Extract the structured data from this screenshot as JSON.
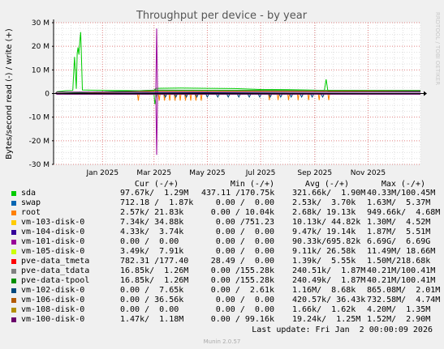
{
  "chart_data": {
    "type": "line",
    "title": "Throughput per device - by year",
    "ylabel": "Bytes/second read (-) / write (+)",
    "side_label": "RRDTOOL / TOBI OETIKER",
    "ylim": [
      -30,
      30
    ],
    "y_unit": "M",
    "yticks": [
      30,
      20,
      10,
      0,
      -10,
      -20,
      -30
    ],
    "ytick_labels": [
      "30 M",
      "20 M",
      "10 M",
      "0",
      "-10 M",
      "-20 M",
      "-30 M"
    ],
    "xlim": [
      "2024-11-06",
      "2025-12-31"
    ],
    "xticks": [
      {
        "date": "2025-01-01",
        "label": "Jan 2025"
      },
      {
        "date": "2025-03-01",
        "label": "Mar 2025"
      },
      {
        "date": "2025-05-01",
        "label": "May 2025"
      },
      {
        "date": "2025-07-01",
        "label": "Jul 2025"
      },
      {
        "date": "2025-09-01",
        "label": "Sep 2025"
      },
      {
        "date": "2025-11-01",
        "label": "Nov 2025"
      }
    ],
    "grid": true,
    "legend_placement": "bottom",
    "series": [
      {
        "name": "sda",
        "color": "#00cc00",
        "write": [
          [
            "2024-11-08",
            0
          ],
          [
            "2024-11-10",
            0.8
          ],
          [
            "2024-11-20",
            1.2
          ],
          [
            "2024-11-28",
            1.3
          ],
          [
            "2024-11-30",
            15.5
          ],
          [
            "2024-12-02",
            2.0
          ],
          [
            "2024-12-03",
            17.0
          ],
          [
            "2024-12-04",
            19.5
          ],
          [
            "2024-12-05",
            16.5
          ],
          [
            "2024-12-06",
            22.0
          ],
          [
            "2024-12-07",
            26.0
          ],
          [
            "2024-12-08",
            15.0
          ],
          [
            "2024-12-09",
            1.5
          ],
          [
            "2024-12-20",
            1.4
          ],
          [
            "2025-01-15",
            1.3
          ],
          [
            "2025-02-15",
            1.2
          ],
          [
            "2025-03-01",
            1.3
          ],
          [
            "2025-03-03",
            2.2
          ],
          [
            "2025-04-01",
            2.3
          ],
          [
            "2025-05-01",
            2.2
          ],
          [
            "2025-06-01",
            2.1
          ],
          [
            "2025-07-01",
            1.7
          ],
          [
            "2025-08-01",
            1.6
          ],
          [
            "2025-09-01",
            1.4
          ],
          [
            "2025-09-12",
            1.3
          ],
          [
            "2025-09-14",
            6.0
          ],
          [
            "2025-09-16",
            1.2
          ],
          [
            "2025-10-15",
            1.1
          ],
          [
            "2025-12-31",
            1.1
          ]
        ],
        "read": [
          [
            "2024-11-08",
            0
          ],
          [
            "2024-11-20",
            -0.2
          ],
          [
            "2025-03-01",
            -0.3
          ],
          [
            "2025-03-02",
            -4.5
          ],
          [
            "2025-03-04",
            -0.3
          ],
          [
            "2025-12-31",
            -0.2
          ]
        ]
      },
      {
        "name": "swap",
        "color": "#0066b3",
        "write": [
          [
            "2024-11-08",
            0
          ],
          [
            "2025-12-31",
            0
          ]
        ],
        "read": [
          [
            "2024-11-08",
            0
          ],
          [
            "2025-12-31",
            0
          ]
        ]
      },
      {
        "name": "root",
        "color": "#ff8000",
        "write": [
          [
            "2024-11-08",
            0
          ],
          [
            "2025-03-02",
            0.9
          ],
          [
            "2025-12-31",
            0.9
          ]
        ],
        "read": [
          [
            "2024-11-08",
            0
          ],
          [
            "2025-02-10",
            0
          ],
          [
            "2025-02-11",
            -3.0
          ],
          [
            "2025-02-12",
            0
          ],
          [
            "2025-03-06",
            0
          ],
          [
            "2025-03-07",
            -3.0
          ],
          [
            "2025-03-08",
            0
          ],
          [
            "2025-03-12",
            0
          ],
          [
            "2025-03-13",
            -3.0
          ],
          [
            "2025-03-14",
            0
          ],
          [
            "2025-03-18",
            0
          ],
          [
            "2025-03-19",
            -3.0
          ],
          [
            "2025-03-20",
            0
          ],
          [
            "2025-03-24",
            0
          ],
          [
            "2025-03-25",
            -3.0
          ],
          [
            "2025-03-26",
            0
          ],
          [
            "2025-03-30",
            0
          ],
          [
            "2025-03-31",
            -3.0
          ],
          [
            "2025-04-01",
            0
          ],
          [
            "2025-04-05",
            0
          ],
          [
            "2025-04-06",
            -3.0
          ],
          [
            "2025-04-07",
            0
          ],
          [
            "2025-04-11",
            0
          ],
          [
            "2025-04-12",
            -3.0
          ],
          [
            "2025-04-13",
            0
          ],
          [
            "2025-04-17",
            0
          ],
          [
            "2025-04-18",
            -3.0
          ],
          [
            "2025-04-19",
            0
          ],
          [
            "2025-04-23",
            0
          ],
          [
            "2025-04-24",
            -3.0
          ],
          [
            "2025-04-25",
            0
          ],
          [
            "2025-07-10",
            0
          ],
          [
            "2025-07-11",
            -2.8
          ],
          [
            "2025-07-12",
            0
          ],
          [
            "2025-07-20",
            0
          ],
          [
            "2025-07-21",
            -2.8
          ],
          [
            "2025-07-22",
            0
          ],
          [
            "2025-08-01",
            0
          ],
          [
            "2025-08-02",
            -2.8
          ],
          [
            "2025-08-03",
            0
          ],
          [
            "2025-08-12",
            0
          ],
          [
            "2025-08-13",
            -2.8
          ],
          [
            "2025-08-14",
            0
          ],
          [
            "2025-08-24",
            0
          ],
          [
            "2025-08-25",
            -2.8
          ],
          [
            "2025-08-26",
            0
          ],
          [
            "2025-09-05",
            0
          ],
          [
            "2025-09-06",
            -2.8
          ],
          [
            "2025-09-07",
            0
          ],
          [
            "2025-09-16",
            0
          ],
          [
            "2025-09-17",
            -2.8
          ],
          [
            "2025-09-18",
            0
          ],
          [
            "2025-12-31",
            0
          ]
        ]
      },
      {
        "name": "vm-103-disk-0",
        "color": "#ffcc00",
        "write": [
          [
            "2024-11-08",
            0
          ],
          [
            "2025-12-31",
            0
          ]
        ],
        "read": [
          [
            "2024-11-08",
            0
          ],
          [
            "2025-12-31",
            0
          ]
        ]
      },
      {
        "name": "vm-104-disk-0",
        "color": "#330099",
        "write": [
          [
            "2024-11-08",
            0
          ],
          [
            "2025-12-31",
            0
          ]
        ],
        "read": [
          [
            "2024-11-08",
            0
          ],
          [
            "2025-12-31",
            0
          ]
        ]
      },
      {
        "name": "vm-101-disk-0",
        "color": "#990099",
        "write": [
          [
            "2024-11-08",
            0
          ],
          [
            "2025-03-03",
            0
          ],
          [
            "2025-03-04",
            27.5
          ],
          [
            "2025-03-05",
            0
          ],
          [
            "2025-12-31",
            0
          ]
        ],
        "read": [
          [
            "2024-11-08",
            0
          ],
          [
            "2025-03-03",
            0
          ],
          [
            "2025-03-04",
            -26.0
          ],
          [
            "2025-03-05",
            0
          ],
          [
            "2025-12-31",
            0
          ]
        ]
      },
      {
        "name": "vm-105-disk-0",
        "color": "#ccff00",
        "write": [
          [
            "2024-11-08",
            0
          ],
          [
            "2025-12-31",
            0
          ]
        ],
        "read": [
          [
            "2024-11-08",
            0
          ],
          [
            "2025-12-31",
            0
          ]
        ]
      },
      {
        "name": "pve-data_tmeta",
        "color": "#ff0000",
        "write": [
          [
            "2024-11-08",
            0
          ],
          [
            "2025-12-31",
            0
          ]
        ],
        "read": [
          [
            "2024-11-08",
            0
          ],
          [
            "2025-12-31",
            0
          ]
        ]
      },
      {
        "name": "pve-data_tdata",
        "color": "#808080",
        "write": [
          [
            "2024-11-08",
            0
          ],
          [
            "2025-03-02",
            1.4
          ],
          [
            "2025-12-31",
            1.3
          ]
        ],
        "read": [
          [
            "2024-11-08",
            0
          ],
          [
            "2025-12-31",
            0
          ]
        ]
      },
      {
        "name": "pve-data-tpool",
        "color": "#008f00",
        "write": [
          [
            "2024-11-08",
            0
          ],
          [
            "2025-03-02",
            1.4
          ],
          [
            "2025-12-31",
            1.3
          ]
        ],
        "read": [
          [
            "2024-11-08",
            0
          ],
          [
            "2025-12-31",
            0
          ]
        ]
      },
      {
        "name": "vm-102-disk-0",
        "color": "#00487d",
        "write": [
          [
            "2024-11-08",
            0
          ],
          [
            "2025-12-31",
            0.8
          ]
        ],
        "read": [
          [
            "2024-11-08",
            0
          ],
          [
            "2025-03-12",
            0
          ],
          [
            "2025-03-14",
            -1.5
          ],
          [
            "2025-03-16",
            0
          ],
          [
            "2025-03-24",
            0
          ],
          [
            "2025-03-26",
            -1.5
          ],
          [
            "2025-03-28",
            0
          ],
          [
            "2025-04-05",
            0
          ],
          [
            "2025-04-07",
            -1.5
          ],
          [
            "2025-04-09",
            0
          ],
          [
            "2025-04-17",
            0
          ],
          [
            "2025-04-19",
            -1.5
          ],
          [
            "2025-04-21",
            0
          ],
          [
            "2025-04-29",
            0
          ],
          [
            "2025-05-01",
            -1.5
          ],
          [
            "2025-05-03",
            0
          ],
          [
            "2025-05-11",
            0
          ],
          [
            "2025-05-13",
            -1.5
          ],
          [
            "2025-05-15",
            0
          ],
          [
            "2025-05-23",
            0
          ],
          [
            "2025-05-25",
            -1.5
          ],
          [
            "2025-05-27",
            0
          ],
          [
            "2025-06-04",
            0
          ],
          [
            "2025-06-06",
            -1.5
          ],
          [
            "2025-06-08",
            0
          ],
          [
            "2025-06-16",
            0
          ],
          [
            "2025-06-18",
            -1.5
          ],
          [
            "2025-06-20",
            0
          ],
          [
            "2025-06-28",
            0
          ],
          [
            "2025-06-30",
            -1.5
          ],
          [
            "2025-07-02",
            0
          ],
          [
            "2025-07-10",
            0
          ],
          [
            "2025-07-12",
            -1.5
          ],
          [
            "2025-07-14",
            0
          ],
          [
            "2025-07-22",
            0
          ],
          [
            "2025-07-24",
            -1.5
          ],
          [
            "2025-07-26",
            0
          ],
          [
            "2025-08-03",
            0
          ],
          [
            "2025-08-05",
            -1.5
          ],
          [
            "2025-08-07",
            0
          ],
          [
            "2025-08-15",
            0
          ],
          [
            "2025-08-17",
            -1.5
          ],
          [
            "2025-08-19",
            0
          ],
          [
            "2025-08-27",
            0
          ],
          [
            "2025-08-29",
            -1.5
          ],
          [
            "2025-08-31",
            0
          ],
          [
            "2025-09-08",
            0
          ],
          [
            "2025-09-10",
            -1.5
          ],
          [
            "2025-09-12",
            0
          ],
          [
            "2025-12-31",
            0
          ]
        ]
      },
      {
        "name": "vm-106-disk-0",
        "color": "#b35a00",
        "write": [
          [
            "2024-11-08",
            0
          ],
          [
            "2025-12-31",
            0
          ]
        ],
        "read": [
          [
            "2024-11-08",
            0
          ],
          [
            "2025-12-31",
            0
          ]
        ]
      },
      {
        "name": "vm-108-disk-0",
        "color": "#b38f00",
        "write": [
          [
            "2024-11-08",
            0
          ],
          [
            "2025-12-31",
            0
          ]
        ],
        "read": [
          [
            "2024-11-08",
            0
          ],
          [
            "2025-12-31",
            0
          ]
        ]
      },
      {
        "name": "vm-100-disk-0",
        "color": "#6b006b",
        "write": [
          [
            "2024-11-08",
            0
          ],
          [
            "2024-11-10",
            0.6
          ],
          [
            "2025-12-31",
            0.6
          ]
        ],
        "read": [
          [
            "2024-11-08",
            0
          ],
          [
            "2024-11-10",
            -0.3
          ],
          [
            "2025-12-31",
            -0.3
          ]
        ]
      }
    ]
  },
  "legend": {
    "headers": {
      "cur": "Cur (-/+)",
      "min": "Min (-/+)",
      "avg": "Avg (-/+)",
      "max": "Max (-/+)"
    },
    "rows": [
      {
        "name": "sda",
        "color": "#00cc00",
        "cur": "97.67k/  1.29M",
        "min": "437.11 /170.75k",
        "avg": "321.66k/  1.90M",
        "max": "40.33M/100.45M"
      },
      {
        "name": "swap",
        "color": "#0066b3",
        "cur": "712.18 /  1.87k",
        "min": "0.00 /  0.00",
        "avg": "2.53k/  3.70k",
        "max": "1.63M/  5.37M"
      },
      {
        "name": "root",
        "color": "#ff8000",
        "cur": "2.57k/ 21.83k",
        "min": "0.00 / 10.04k",
        "avg": "2.68k/ 19.13k",
        "max": "949.66k/  4.68M"
      },
      {
        "name": "vm-103-disk-0",
        "color": "#ffcc00",
        "cur": "7.34k/ 34.88k",
        "min": "0.00 /751.23",
        "avg": "10.13k/ 44.82k",
        "max": "1.30M/  4.52M"
      },
      {
        "name": "vm-104-disk-0",
        "color": "#330099",
        "cur": "4.33k/  3.74k",
        "min": "0.00 /  0.00",
        "avg": "9.47k/ 19.14k",
        "max": "1.87M/  5.51M"
      },
      {
        "name": "vm-101-disk-0",
        "color": "#990099",
        "cur": "0.00 /  0.00",
        "min": "0.00 /  0.00",
        "avg": "90.33k/695.82k",
        "max": "6.69G/  6.69G"
      },
      {
        "name": "vm-105-disk-0",
        "color": "#ccff00",
        "cur": "3.49k/  7.91k",
        "min": "0.00 /  0.00",
        "avg": "9.11k/ 26.58k",
        "max": "11.49M/ 18.66M"
      },
      {
        "name": "pve-data_tmeta",
        "color": "#ff0000",
        "cur": "782.31 /177.40",
        "min": "28.49 /  0.00",
        "avg": "1.39k/  5.55k",
        "max": "1.50M/218.68k"
      },
      {
        "name": "pve-data_tdata",
        "color": "#808080",
        "cur": "16.85k/  1.26M",
        "min": "0.00 /155.28k",
        "avg": "240.51k/  1.87M",
        "max": "40.21M/100.41M"
      },
      {
        "name": "pve-data-tpool",
        "color": "#008f00",
        "cur": "16.85k/  1.26M",
        "min": "0.00 /155.28k",
        "avg": "240.49k/  1.87M",
        "max": "40.21M/100.41M"
      },
      {
        "name": "vm-102-disk-0",
        "color": "#00487d",
        "cur": "0.00 /  7.65k",
        "min": "0.00 /  2.61k",
        "avg": "1.16M/  8.68k",
        "max": "865.08M/  2.01M"
      },
      {
        "name": "vm-106-disk-0",
        "color": "#b35a00",
        "cur": "0.00 / 36.56k",
        "min": "0.00 /  0.00",
        "avg": "420.57k/ 36.43k",
        "max": "732.58M/  4.74M"
      },
      {
        "name": "vm-108-disk-0",
        "color": "#b38f00",
        "cur": "0.00 /  0.00",
        "min": "0.00 /  0.00",
        "avg": "1.66k/  1.62k",
        "max": "4.20M/  1.35M"
      },
      {
        "name": "vm-100-disk-0",
        "color": "#6b006b",
        "cur": "1.47k/  1.18M",
        "min": "0.00 / 99.16k",
        "avg": "19.24k/  1.25M",
        "max": "1.52M/  2.90M"
      }
    ]
  },
  "last_update": "Last update: Fri Jan  2 00:00:09 2026",
  "munin_version": "Munin 2.0.57",
  "colors": {
    "background": "#f0f0f0",
    "plot_background": "#ffffff",
    "minor_grid": "#e0e0e0",
    "major_grid": "#e08080",
    "axis": "#000000",
    "text": "#000000",
    "title": "#555555"
  }
}
